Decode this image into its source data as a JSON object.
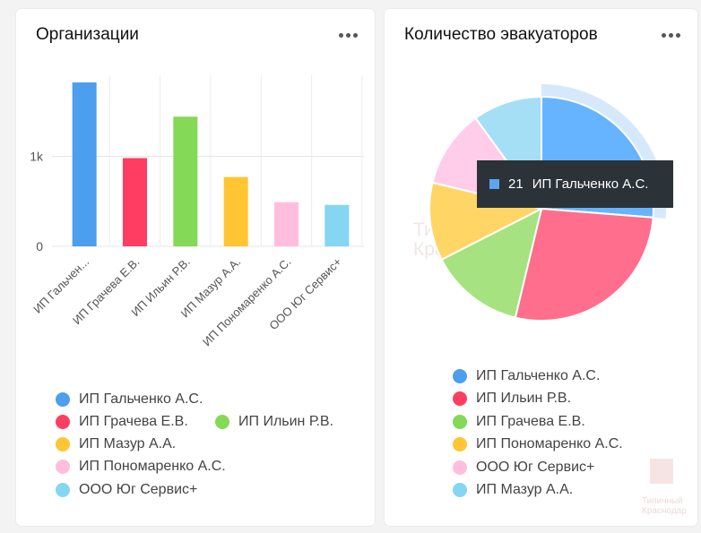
{
  "orgs_card": {
    "title": "Организации",
    "legend": [
      {
        "label": "ИП Гальченко А.С.",
        "color": "#4c9eee"
      },
      {
        "label": "ИП Грачева Е.В.",
        "color": "#ff3d63"
      },
      {
        "label": "ИП Ильин Р.В.",
        "color": "#84d957"
      },
      {
        "label": "ИП Мазур А.А.",
        "color": "#ffc533"
      },
      {
        "label": "ИП Пономаренко А.С.",
        "color": "#ffbede"
      },
      {
        "label": "ООО Юг Сервис+",
        "color": "#84d6f2"
      }
    ]
  },
  "tow_card": {
    "title": "Количество эвакуаторов",
    "legend": [
      {
        "label": "ИП Гальченко А.С.",
        "color": "#4c9eee"
      },
      {
        "label": "ИП Ильин Р.В.",
        "color": "#ff3d63"
      },
      {
        "label": "ИП Грачева Е.В.",
        "color": "#84d957"
      },
      {
        "label": "ИП Пономаренко А.С.",
        "color": "#ffc533"
      },
      {
        "label": "ООО Юг Сервис+",
        "color": "#ffbede"
      },
      {
        "label": "ИП Мазур А.А.",
        "color": "#84d6f2"
      }
    ],
    "tooltip": {
      "value": "21",
      "label": "ИП Гальченко А.С.",
      "color": "#5ba4f0"
    }
  },
  "watermark": {
    "line1": "Типичный",
    "line2": "Краснодар"
  },
  "chart_data": [
    {
      "type": "bar",
      "title": "Организации",
      "categories": [
        "ИП Гальчен...",
        "ИП Грачева Е.В.",
        "ИП Ильин Р.В.",
        "ИП Мазур А.А.",
        "ИП Пономаренко А.С.",
        "ООО Юг Сервис+"
      ],
      "values": [
        1820,
        980,
        1440,
        770,
        490,
        460
      ],
      "colors": [
        "#4c9eee",
        "#ff3d63",
        "#84d957",
        "#ffc533",
        "#ffbede",
        "#84d6f2"
      ],
      "ytick_labels": [
        "0",
        "1k"
      ],
      "ytick_values": [
        0,
        1000
      ],
      "ylim": [
        0,
        1900
      ],
      "grid": "vertical"
    },
    {
      "type": "pie",
      "title": "Количество эвакуаторов",
      "labels": [
        "ИП Гальченко А.С.",
        "ИП Ильин Р.В.",
        "ИП Грачева Е.В.",
        "ИП Пономаренко А.С.",
        "ООО Юг Сервис+",
        "ИП Мазур А.А."
      ],
      "values": [
        21,
        22,
        11,
        9,
        9,
        8
      ],
      "colors": [
        "#66b4ff",
        "#ff6e8c",
        "#a6e27f",
        "#ffd566",
        "#ffccea",
        "#a5dff5"
      ],
      "highlighted": "ИП Гальченко А.С."
    }
  ]
}
